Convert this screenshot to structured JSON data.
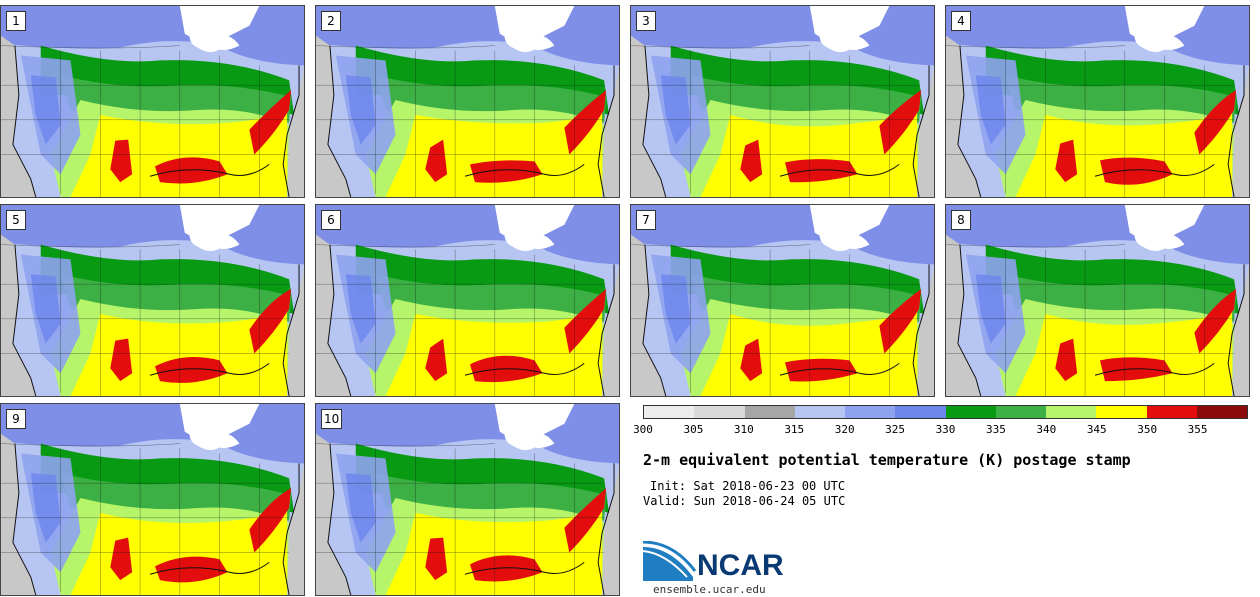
{
  "map": {
    "title": "2-m equivalent potential temperature (K) postage stamp",
    "init": "Init: Sat 2018-06-23 00 UTC",
    "valid": "Valid: Sun 2018-06-24 05 UTC",
    "members": [
      "1",
      "2",
      "3",
      "4",
      "5",
      "6",
      "7",
      "8",
      "9",
      "10"
    ],
    "colorbar": {
      "ticks": [
        "300",
        "305",
        "310",
        "315",
        "320",
        "325",
        "330",
        "335",
        "340",
        "345",
        "350",
        "355"
      ],
      "colors": [
        "#ececec",
        "#d9d9d9",
        "#a6a6a6",
        "#b7c5f3",
        "#8ea3ef",
        "#6d86ec",
        "#079a12",
        "#3cb044",
        "#b6f46a",
        "#ffff00",
        "#e30d0d",
        "#8b0a0a"
      ]
    },
    "logo": {
      "text": "NCAR",
      "site": "ensemble.ucar.edu"
    },
    "palette": {
      "canada": "#7f8fe8",
      "ocean": "#c8c8c8",
      "great_lakes": "#ffffff",
      "border": "#111111"
    }
  }
}
